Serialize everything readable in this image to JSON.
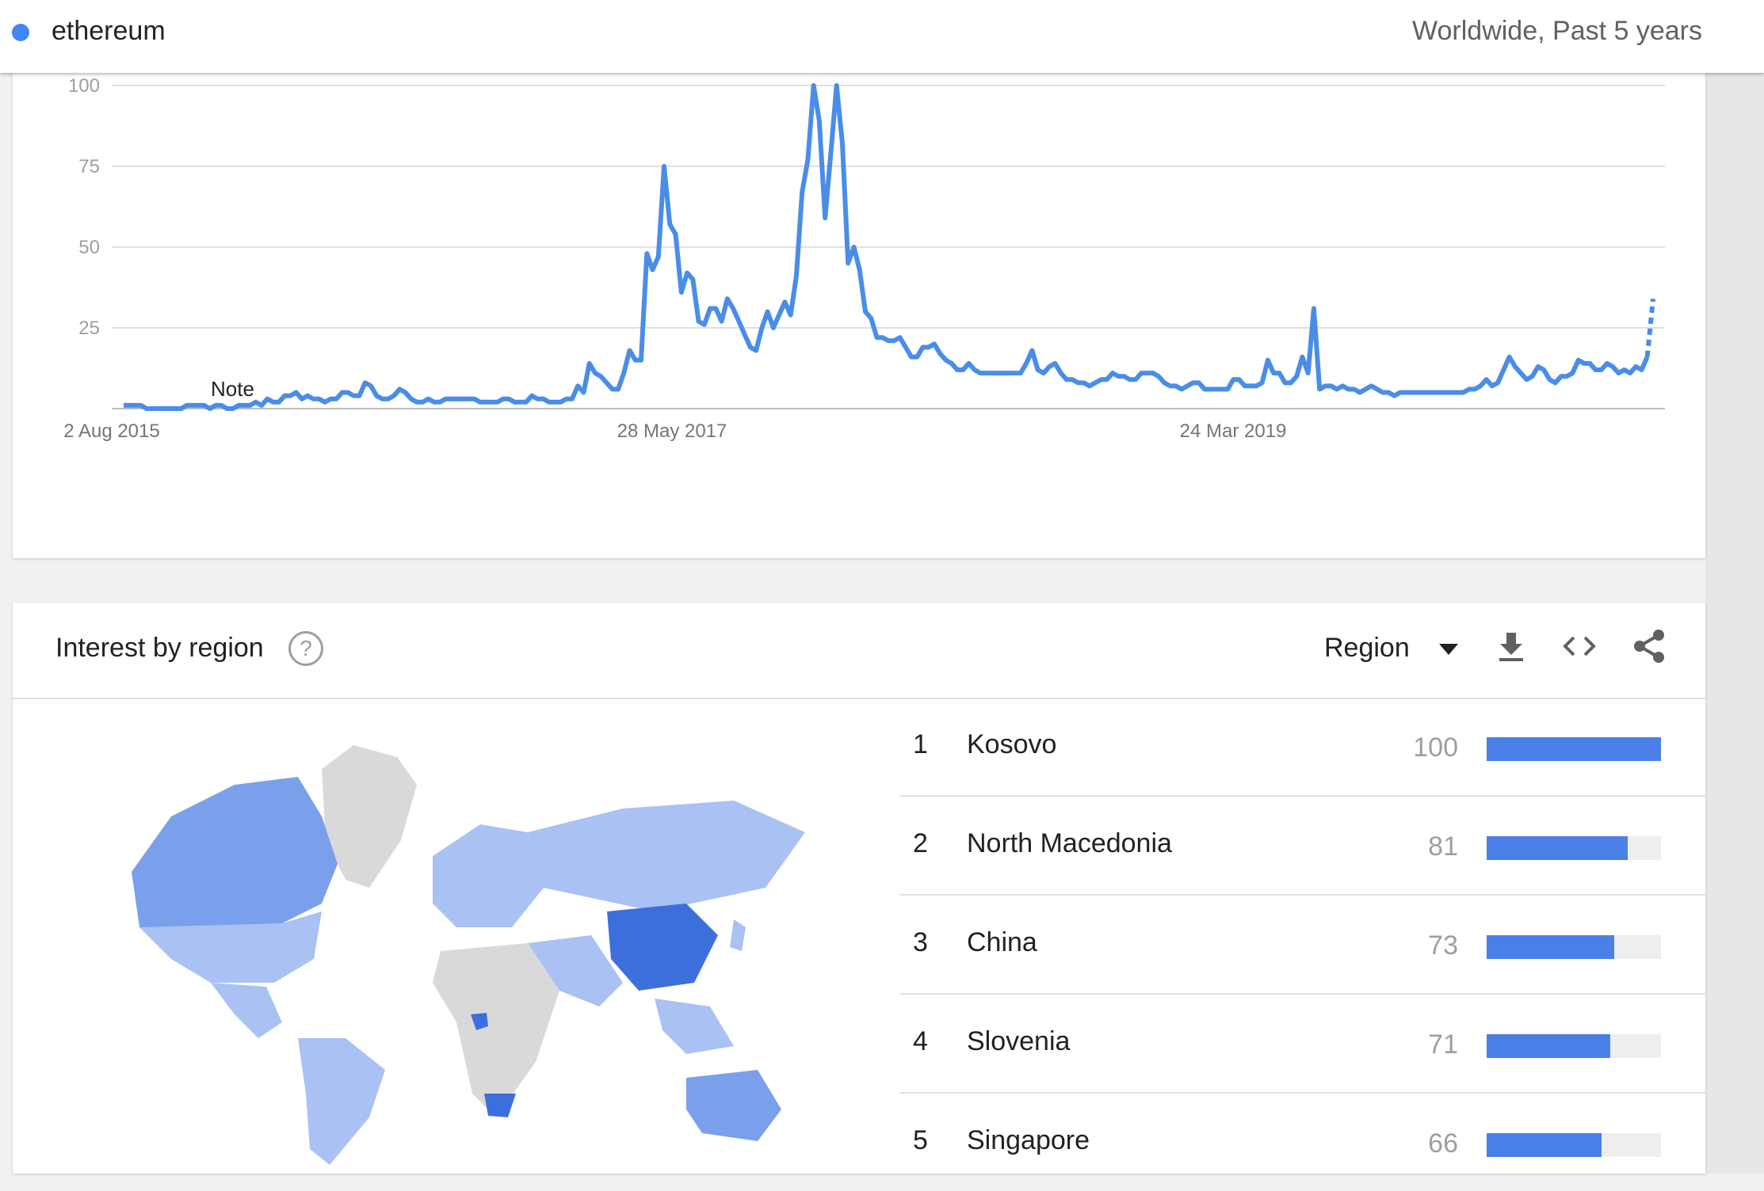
{
  "header": {
    "term": "ethereum",
    "scope": "Worldwide, Past 5 years",
    "series_color": "#4285f4"
  },
  "chart_data": {
    "type": "line",
    "yticks": [
      100,
      75,
      50,
      25
    ],
    "ylim": [
      0,
      100
    ],
    "xtick_labels": [
      "2 Aug 2015",
      "28 May 2017",
      "24 Mar 2019"
    ],
    "annotation": "Note",
    "series": [
      {
        "values": [
          1,
          1,
          1,
          1,
          0,
          0,
          0,
          0,
          0,
          0,
          0,
          1,
          1,
          1,
          1,
          0,
          1,
          1,
          0,
          0,
          1,
          1,
          1,
          2,
          1,
          3,
          2,
          2,
          4,
          4,
          5,
          3,
          4,
          3,
          3,
          2,
          3,
          3,
          5,
          5,
          4,
          4,
          8,
          7,
          4,
          3,
          3,
          4,
          6,
          5,
          3,
          2,
          2,
          3,
          2,
          2,
          3,
          3,
          3,
          3,
          3,
          3,
          2,
          2,
          2,
          2,
          3,
          3,
          2,
          2,
          2,
          4,
          3,
          3,
          2,
          2,
          2,
          3,
          3,
          7,
          5,
          14,
          11,
          10,
          8,
          6,
          6,
          11,
          18,
          15,
          15,
          48,
          43,
          47,
          75,
          57,
          54,
          36,
          42,
          40,
          27,
          26,
          31,
          31,
          27,
          34,
          31,
          27,
          23,
          19,
          18,
          25,
          30,
          25,
          29,
          33,
          29,
          41,
          67,
          77,
          100,
          89,
          59,
          79,
          100,
          82,
          45,
          50,
          43,
          30,
          28,
          22,
          22,
          21,
          21,
          22,
          19,
          16,
          16,
          19,
          19,
          20,
          17,
          15,
          14,
          12,
          12,
          14,
          12,
          11,
          11,
          11,
          11,
          11,
          11,
          11,
          11,
          14,
          18,
          12,
          11,
          13,
          14,
          11,
          9,
          9,
          8,
          8,
          7,
          8,
          9,
          9,
          11,
          10,
          10,
          9,
          9,
          11,
          11,
          11,
          10,
          8,
          7,
          7,
          6,
          7,
          8,
          8,
          6,
          6,
          6,
          6,
          6,
          9,
          9,
          7,
          7,
          7,
          8,
          15,
          11,
          11,
          8,
          8,
          10,
          16,
          11,
          31,
          6,
          7,
          7,
          6,
          7,
          6,
          6,
          5,
          6,
          7,
          6,
          5,
          5,
          4,
          5,
          5,
          5,
          5,
          5,
          5,
          5,
          5,
          5,
          5,
          5,
          5,
          6,
          6,
          7,
          9,
          7,
          8,
          12,
          16,
          13,
          11,
          9,
          10,
          13,
          12,
          9,
          8,
          10,
          10,
          11,
          15,
          14,
          14,
          12,
          12,
          14,
          13,
          11,
          12,
          11,
          13,
          12,
          16,
          34
        ]
      }
    ]
  },
  "region": {
    "title": "Interest by region",
    "help_glyph": "?",
    "selector": "Region",
    "icons": [
      "download-icon",
      "embed-code-icon",
      "share-icon"
    ],
    "rows": [
      {
        "rank": "1",
        "name": "Kosovo",
        "value": "100",
        "pct": 1.0
      },
      {
        "rank": "2",
        "name": "North Macedonia",
        "value": "81",
        "pct": 0.81
      },
      {
        "rank": "3",
        "name": "China",
        "value": "73",
        "pct": 0.73
      },
      {
        "rank": "4",
        "name": "Slovenia",
        "value": "71",
        "pct": 0.71
      },
      {
        "rank": "5",
        "name": "Singapore",
        "value": "66",
        "pct": 0.66
      }
    ],
    "bar_color": "#4a7fe8",
    "map_colors": {
      "high": "#3d6fdc",
      "mid": "#7aa0eb",
      "low": "#a9c1f3",
      "none": "#d9d9d9"
    }
  }
}
